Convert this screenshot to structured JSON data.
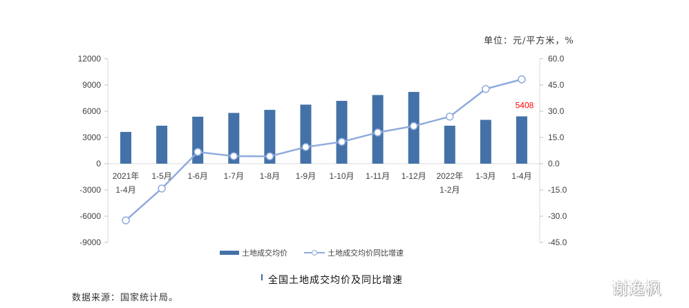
{
  "header": {
    "unit_label": "单位：元/平方米，%"
  },
  "chart_data": {
    "type": "bar+line",
    "title": "全国土地成交均价及同比增速",
    "categories": [
      "2021年\n1-4月",
      "1-5月",
      "1-6月",
      "1-7月",
      "1-8月",
      "1-9月",
      "1-10月",
      "1-11月",
      "1-12月",
      "2022年\n1-2月",
      "1-3月",
      "1-4月"
    ],
    "category_lines": [
      [
        "2021年",
        "1-4月"
      ],
      [
        "1-5月"
      ],
      [
        "1-6月"
      ],
      [
        "1-7月"
      ],
      [
        "1-8月"
      ],
      [
        "1-9月"
      ],
      [
        "1-10月"
      ],
      [
        "1-11月"
      ],
      [
        "1-12月"
      ],
      [
        "2022年",
        "1-2月"
      ],
      [
        "1-3月"
      ],
      [
        "1-4月"
      ]
    ],
    "series": [
      {
        "name": "土地成交均价",
        "type": "bar",
        "axis": "left",
        "color": "#4472A8",
        "values": [
          3630,
          4340,
          5370,
          5800,
          6150,
          6750,
          7180,
          7850,
          8200,
          4340,
          5010,
          5408
        ]
      },
      {
        "name": "土地成交均价同比增速",
        "type": "line",
        "axis": "right",
        "color": "#8FAADC",
        "values": [
          -32.4,
          -14.2,
          6.7,
          4.3,
          4.2,
          9.5,
          12.5,
          17.8,
          21.5,
          26.9,
          42.7,
          48.2
        ]
      }
    ],
    "annotations": [
      {
        "category_index": 11,
        "text": "5408",
        "color": "#FF0000"
      }
    ],
    "left_axis": {
      "ylim": [
        -9000,
        12000
      ],
      "ticks": [
        "12000",
        "9000",
        "6000",
        "3000",
        "0",
        "-3000",
        "-6000",
        "-9000"
      ]
    },
    "right_axis": {
      "ylim": [
        -45,
        60
      ],
      "ticks": [
        "60.0",
        "45.0",
        "30.0",
        "15.0",
        "0.0",
        "-15.0",
        "-30.0",
        "-45.0"
      ]
    },
    "legend_position": "bottom",
    "grid": false
  },
  "legend": {
    "bar_label": "土地成交均价",
    "line_label": "土地成交均价同比增速"
  },
  "footer": {
    "title": "全国土地成交均价及同比增速",
    "source": "数据来源：国家统计局。",
    "watermark": "谢逸枫"
  }
}
